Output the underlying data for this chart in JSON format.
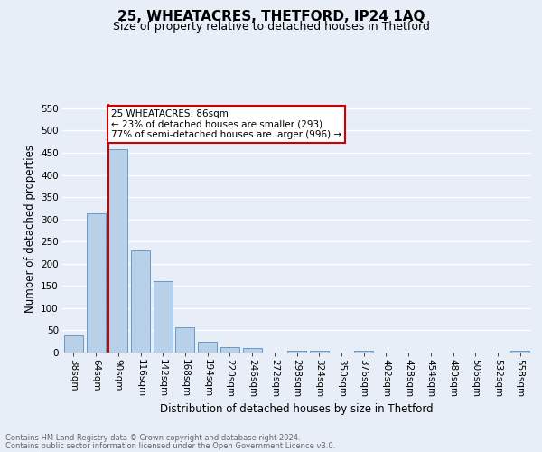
{
  "title1": "25, WHEATACRES, THETFORD, IP24 1AQ",
  "title2": "Size of property relative to detached houses in Thetford",
  "xlabel": "Distribution of detached houses by size in Thetford",
  "ylabel": "Number of detached properties",
  "footer1": "Contains HM Land Registry data © Crown copyright and database right 2024.",
  "footer2": "Contains public sector information licensed under the Open Government Licence v3.0.",
  "categories": [
    "38sqm",
    "64sqm",
    "90sqm",
    "116sqm",
    "142sqm",
    "168sqm",
    "194sqm",
    "220sqm",
    "246sqm",
    "272sqm",
    "298sqm",
    "324sqm",
    "350sqm",
    "376sqm",
    "402sqm",
    "428sqm",
    "454sqm",
    "480sqm",
    "506sqm",
    "532sqm",
    "558sqm"
  ],
  "values": [
    38,
    313,
    458,
    230,
    160,
    57,
    25,
    12,
    10,
    0,
    5,
    5,
    0,
    5,
    0,
    0,
    0,
    0,
    0,
    0,
    5
  ],
  "bar_color": "#b8d0e8",
  "bar_edge_color": "#6699cc",
  "subject_line_color": "#cc0000",
  "annotation_text": "25 WHEATACRES: 86sqm\n← 23% of detached houses are smaller (293)\n77% of semi-detached houses are larger (996) →",
  "annotation_box_color": "#cc0000",
  "ylim": [
    0,
    560
  ],
  "yticks": [
    0,
    50,
    100,
    150,
    200,
    250,
    300,
    350,
    400,
    450,
    500,
    550
  ],
  "bg_color": "#e8eef8",
  "plot_bg_color": "#e8eef8",
  "grid_color": "#ffffff",
  "title1_fontsize": 11,
  "title2_fontsize": 9,
  "tick_fontsize": 7.5,
  "ylabel_fontsize": 8.5,
  "xlabel_fontsize": 8.5,
  "footer_fontsize": 6,
  "annotation_fontsize": 7.5
}
